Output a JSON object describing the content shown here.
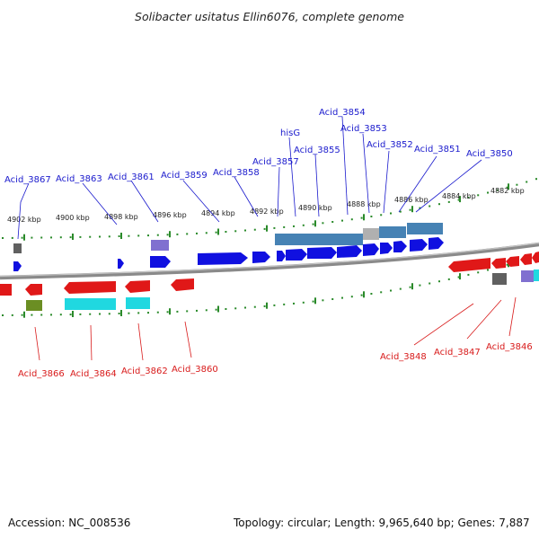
{
  "title": "Solibacter usitatus Ellin6076, complete genome",
  "accession_text": "Accession: NC_008536",
  "summary_text": "Topology: circular; Length: 9,965,640 bp; Genes: 7,887",
  "kbp_labels": [
    "4902 kbp",
    "4900 kbp",
    "4898 kbp",
    "4896 kbp",
    "4894 kbp",
    "4892 kbp",
    "4890 kbp",
    "4888 kbp",
    "4886 kbp",
    "4884 kbp",
    "4882 kbp"
  ],
  "top_gene_labels": [
    "Acid_3867",
    "Acid_3863",
    "Acid_3861",
    "Acid_3859",
    "Acid_3858",
    "Acid_3857",
    "hisG",
    "Acid_3855",
    "Acid_3854",
    "Acid_3853",
    "Acid_3852",
    "Acid_3851",
    "Acid_3850"
  ],
  "bottom_gene_labels": [
    "Acid_3866",
    "Acid_3864",
    "Acid_3862",
    "Acid_3860",
    "Acid_3848",
    "Acid_3847",
    "Acid_3846"
  ],
  "colors": {
    "forward_gene": "#1010e0",
    "reverse_gene": "#e01818",
    "backbone": "#888888",
    "tick": "#2a8a2a",
    "label_top": "#1a1acd",
    "label_bottom": "#d81a1a",
    "cog_blue": "#4682b4",
    "cog_cyan": "#20d8e0",
    "cog_purple": "#8070d0",
    "cog_olive": "#6b8e23",
    "cog_gray": "#606060"
  }
}
